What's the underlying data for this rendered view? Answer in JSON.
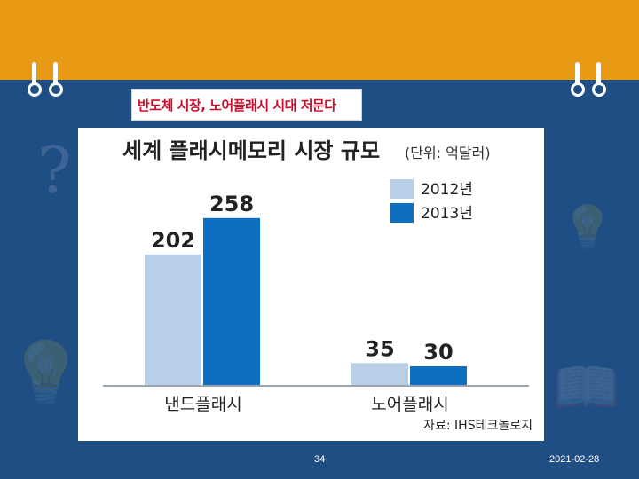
{
  "slide": {
    "headline": "반도체 시장, 노어플래시 시대 저문다",
    "page_number": "34",
    "date": "2021-02-28"
  },
  "colors": {
    "background": "#1f4e85",
    "top_band": "#e99a14",
    "series_2012": "#b9cfe8",
    "series_2013": "#0e6fc1"
  },
  "icons": [
    "binder-ring-icon",
    "question-mark-icon",
    "light-bulb-icon",
    "book-icon"
  ],
  "chart_data": {
    "type": "bar",
    "title": "세계 플래시메모리 시장 규모",
    "unit": "(단위: 억달러)",
    "categories": [
      "낸드플래시",
      "노어플래시"
    ],
    "series": [
      {
        "name": "2012년",
        "values": [
          202,
          35
        ]
      },
      {
        "name": "2013년",
        "values": [
          258,
          30
        ]
      }
    ],
    "ylim": [
      0,
      300
    ],
    "grid": false,
    "legend": "top-right",
    "source": "자료: IHS테크놀로지"
  }
}
